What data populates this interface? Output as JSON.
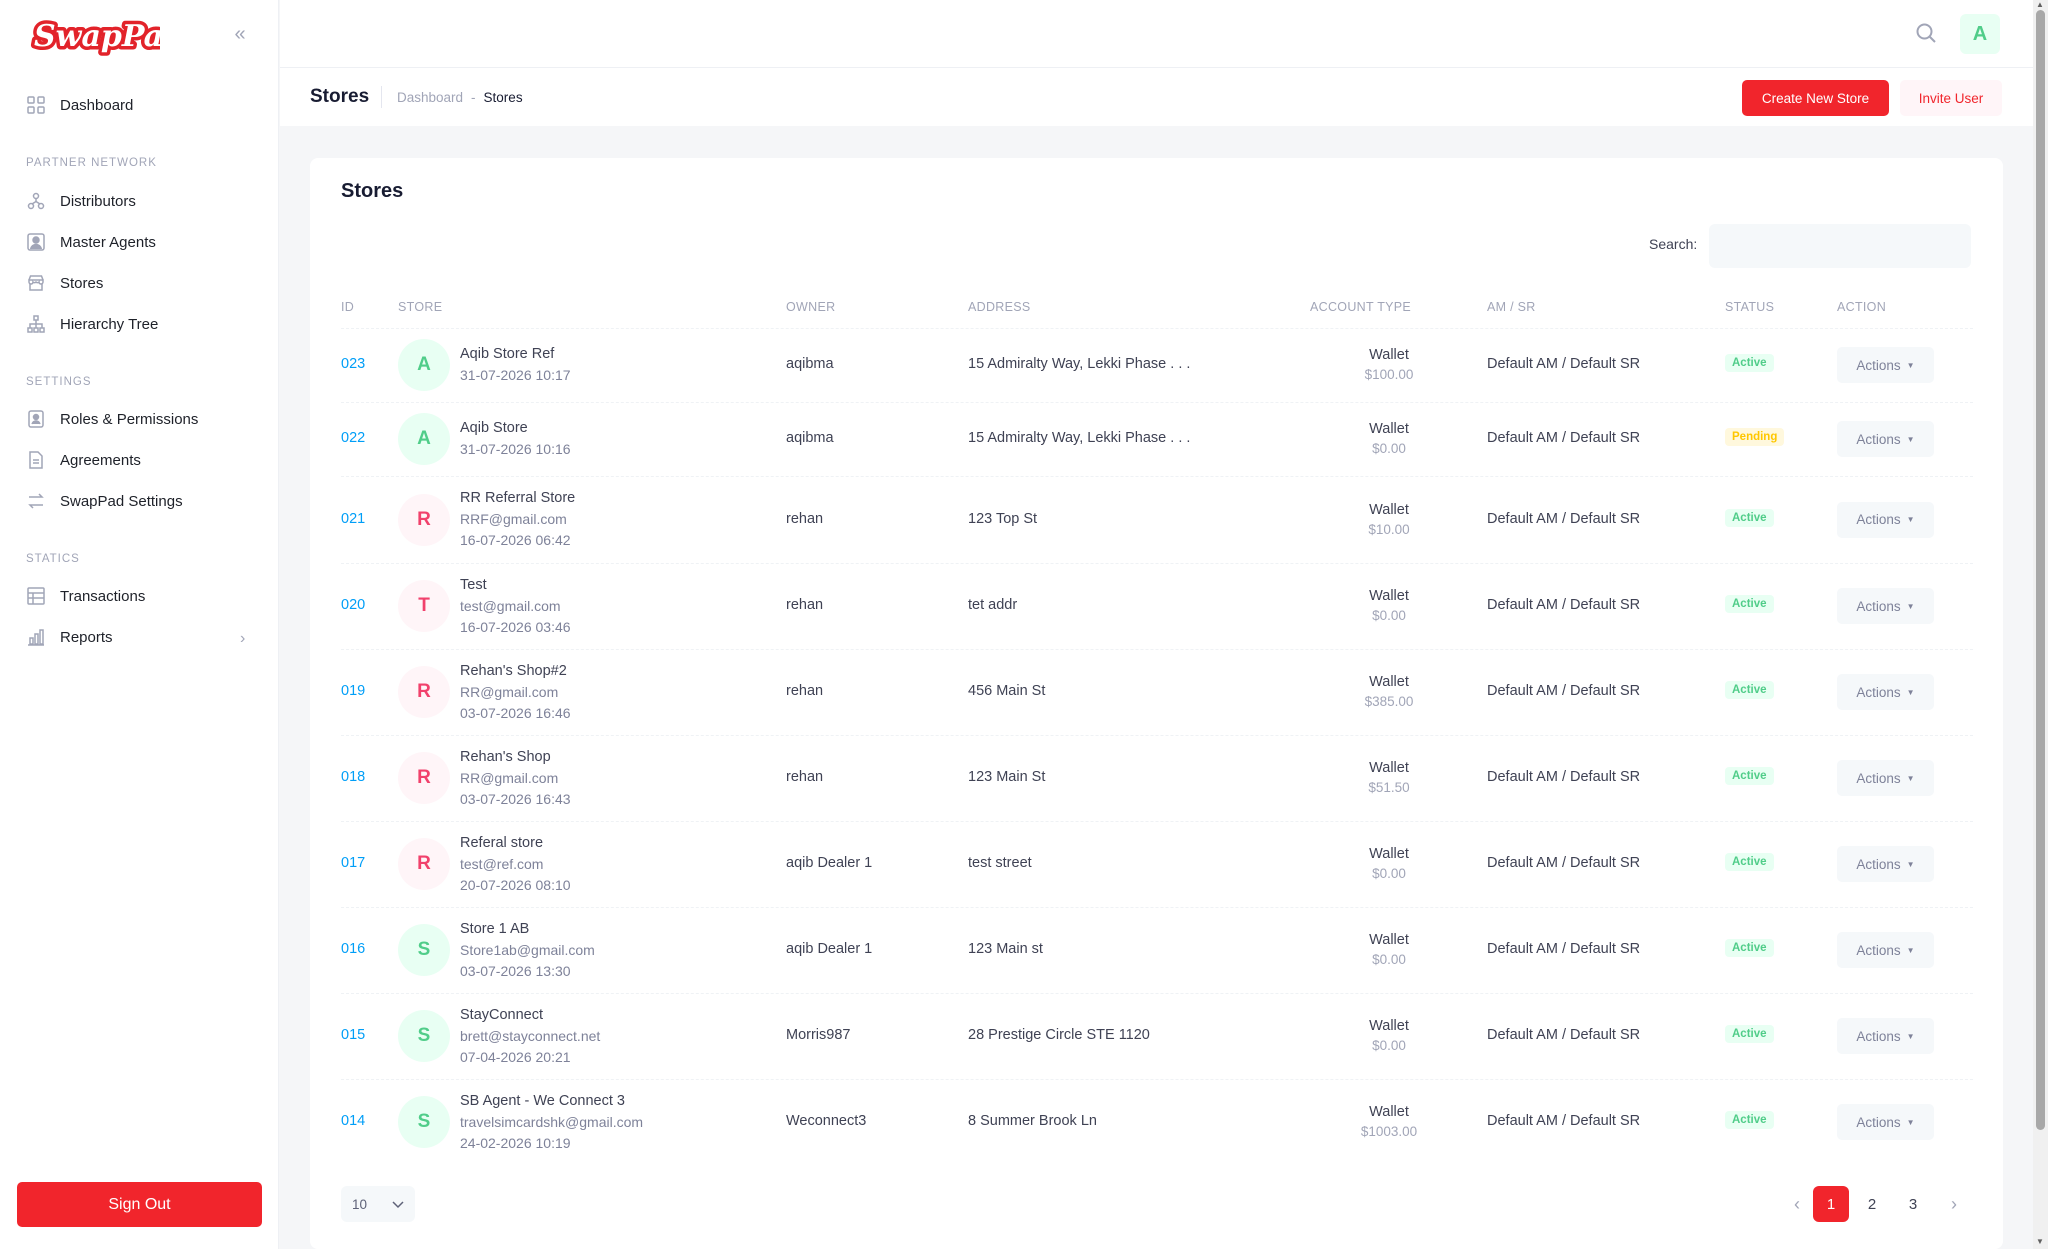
{
  "app": {
    "logo_text": "SwapPad"
  },
  "sidebar": {
    "collapse_icon": "double-chevron-left-icon",
    "dashboard": "Dashboard",
    "sections": [
      {
        "title": "PARTNER NETWORK",
        "items": [
          "Distributors",
          "Master Agents",
          "Stores",
          "Hierarchy Tree"
        ]
      },
      {
        "title": "SETTINGS",
        "items": [
          "Roles & Permissions",
          "Agreements",
          "SwapPad Settings"
        ]
      },
      {
        "title": "STATICS",
        "items": [
          "Transactions",
          "Reports"
        ]
      }
    ],
    "sign_out": "Sign Out"
  },
  "header": {
    "avatar_letter": "A"
  },
  "toolbar": {
    "title": "Stores",
    "breadcrumb": [
      "Dashboard",
      "-",
      "Stores"
    ],
    "create_label": "Create New Store",
    "invite_label": "Invite User"
  },
  "card": {
    "title": "Stores",
    "search_label": "Search:",
    "columns": [
      "ID",
      "STORE",
      "OWNER",
      "ADDRESS",
      "ACCOUNT TYPE",
      "AM / SR",
      "STATUS",
      "ACTION"
    ],
    "rows": [
      {
        "id": "023",
        "letter": "A",
        "color": "green",
        "name": "Aqib Store Ref",
        "email": "",
        "date": "31-07-2026 10:17",
        "owner": "aqibma",
        "address": "15 Admiralty Way, Lekki Phase . . .",
        "type": "Wallet",
        "amount": "$100.00",
        "amsr": "Default AM / Default SR",
        "status": "Active",
        "action": "Actions"
      },
      {
        "id": "022",
        "letter": "A",
        "color": "green",
        "name": "Aqib Store",
        "email": "",
        "date": "31-07-2026 10:16",
        "owner": "aqibma",
        "address": "15 Admiralty Way, Lekki Phase . . .",
        "type": "Wallet",
        "amount": "$0.00",
        "amsr": "Default AM / Default SR",
        "status": "Pending",
        "action": "Actions"
      },
      {
        "id": "021",
        "letter": "R",
        "color": "red",
        "name": "RR Referral Store",
        "email": "RRF@gmail.com",
        "date": "16-07-2026 06:42",
        "owner": "rehan",
        "address": "123 Top St",
        "type": "Wallet",
        "amount": "$10.00",
        "amsr": "Default AM / Default SR",
        "status": "Active",
        "action": "Actions"
      },
      {
        "id": "020",
        "letter": "T",
        "color": "red",
        "name": "Test",
        "email": "test@gmail.com",
        "date": "16-07-2026 03:46",
        "owner": "rehan",
        "address": "tet addr",
        "type": "Wallet",
        "amount": "$0.00",
        "amsr": "Default AM / Default SR",
        "status": "Active",
        "action": "Actions"
      },
      {
        "id": "019",
        "letter": "R",
        "color": "red",
        "name": "Rehan's Shop#2",
        "email": "RR@gmail.com",
        "date": "03-07-2026 16:46",
        "owner": "rehan",
        "address": "456 Main St",
        "type": "Wallet",
        "amount": "$385.00",
        "amsr": "Default AM / Default SR",
        "status": "Active",
        "action": "Actions"
      },
      {
        "id": "018",
        "letter": "R",
        "color": "red",
        "name": "Rehan's Shop",
        "email": "RR@gmail.com",
        "date": "03-07-2026 16:43",
        "owner": "rehan",
        "address": "123 Main St",
        "type": "Wallet",
        "amount": "$51.50",
        "amsr": "Default AM / Default SR",
        "status": "Active",
        "action": "Actions"
      },
      {
        "id": "017",
        "letter": "R",
        "color": "red",
        "name": "Referal store",
        "email": "test@ref.com",
        "date": "20-07-2026 08:10",
        "owner": "aqib Dealer 1",
        "address": "test street",
        "type": "Wallet",
        "amount": "$0.00",
        "amsr": "Default AM / Default SR",
        "status": "Active",
        "action": "Actions"
      },
      {
        "id": "016",
        "letter": "S",
        "color": "green",
        "name": "Store 1 AB",
        "email": "Store1ab@gmail.com",
        "date": "03-07-2026 13:30",
        "owner": "aqib Dealer 1",
        "address": "123 Main st",
        "type": "Wallet",
        "amount": "$0.00",
        "amsr": "Default AM / Default SR",
        "status": "Active",
        "action": "Actions"
      },
      {
        "id": "015",
        "letter": "S",
        "color": "green",
        "name": "StayConnect",
        "email": "brett@stayconnect.net",
        "date": "07-04-2026 20:21",
        "owner": "Morris987",
        "address": "28 Prestige Circle STE 1120",
        "type": "Wallet",
        "amount": "$0.00",
        "amsr": "Default AM / Default SR",
        "status": "Active",
        "action": "Actions"
      },
      {
        "id": "014",
        "letter": "S",
        "color": "green",
        "name": "SB Agent - We Connect 3",
        "email": "travelsimcardshk@gmail.com",
        "date": "24-02-2026 10:19",
        "owner": "Weconnect3",
        "address": "8 Summer Brook Ln",
        "type": "Wallet",
        "amount": "$1003.00",
        "amsr": "Default AM / Default SR",
        "status": "Active",
        "action": "Actions"
      }
    ],
    "page_size": "10",
    "pages": [
      "1",
      "2",
      "3"
    ],
    "current_page": "1"
  },
  "colors": {
    "brand": "#f1252c",
    "active": "#50cd89",
    "pending": "#ffc700",
    "link": "#009ef7"
  }
}
